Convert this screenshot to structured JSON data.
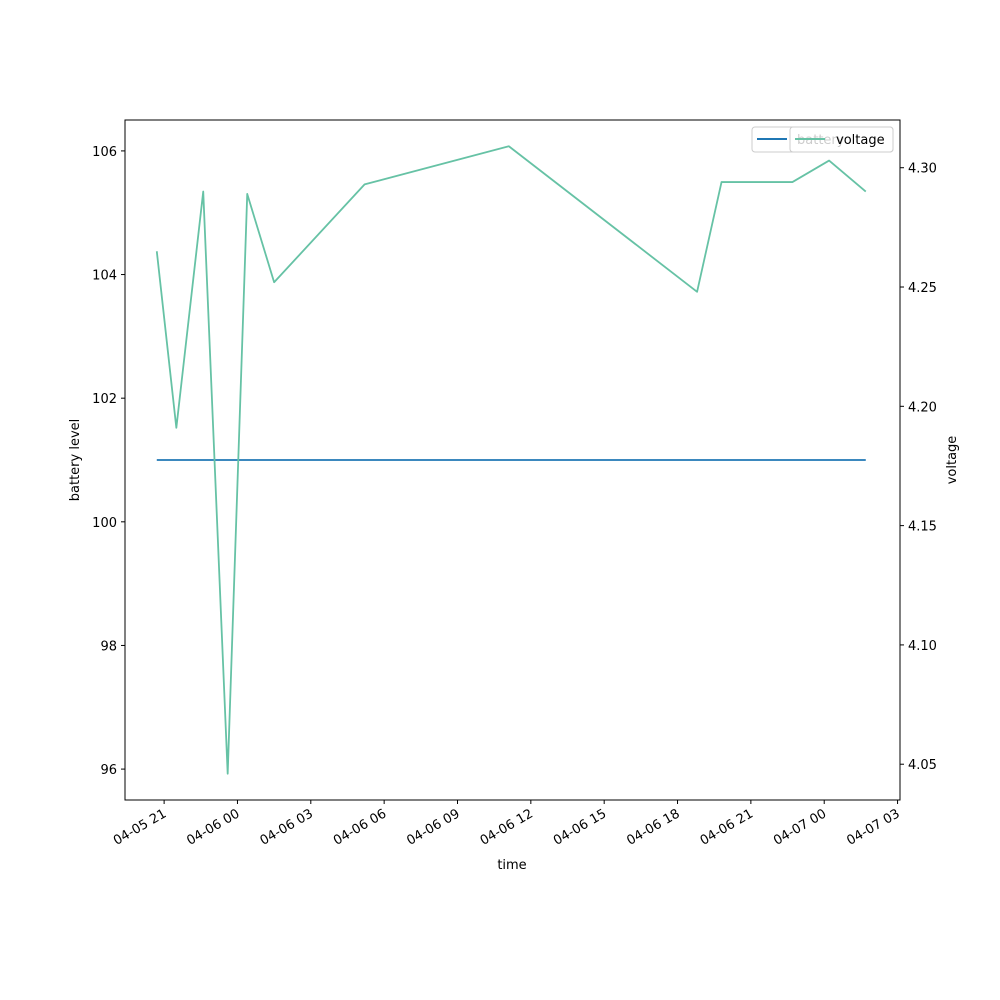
{
  "chart_data": {
    "type": "line",
    "xlabel": "time",
    "ylabel_left": "battery level",
    "ylabel_right": "voltage",
    "x_ticks": [
      "04-05 21",
      "04-06 00",
      "04-06 03",
      "04-06 06",
      "04-06 09",
      "04-06 12",
      "04-06 15",
      "04-06 18",
      "04-06 21",
      "04-07 00",
      "04-07 03"
    ],
    "y_left_ticks": [
      "96",
      "98",
      "100",
      "102",
      "104",
      "106"
    ],
    "y_right_ticks": [
      "4.05",
      "4.10",
      "4.15",
      "4.20",
      "4.25",
      "4.30"
    ],
    "xlim": [
      "2022-04-05T19:24",
      "2022-04-07T03:06"
    ],
    "ylim_left": [
      95.5,
      106.5
    ],
    "ylim_right": [
      4.035,
      4.32
    ],
    "legend_position": "top-right",
    "series": [
      {
        "name": "battery",
        "axis": "left",
        "color": "#1f77b4",
        "x": [
          "2022-04-05T20:42",
          "2022-04-07T01:42"
        ],
        "values": [
          101,
          101
        ]
      },
      {
        "name": "voltage",
        "axis": "right",
        "color": "#66c2a5",
        "x": [
          "2022-04-05T20:42",
          "2022-04-05T21:30",
          "2022-04-05T22:36",
          "2022-04-05T23:36",
          "2022-04-06T00:24",
          "2022-04-06T01:30",
          "2022-04-06T05:12",
          "2022-04-06T11:06",
          "2022-04-06T18:48",
          "2022-04-06T19:48",
          "2022-04-06T22:42",
          "2022-04-07T00:12",
          "2022-04-07T01:42"
        ],
        "values": [
          4.265,
          4.191,
          4.29,
          4.046,
          4.289,
          4.252,
          4.293,
          4.309,
          4.248,
          4.294,
          4.294,
          4.303,
          4.29
        ]
      }
    ]
  }
}
